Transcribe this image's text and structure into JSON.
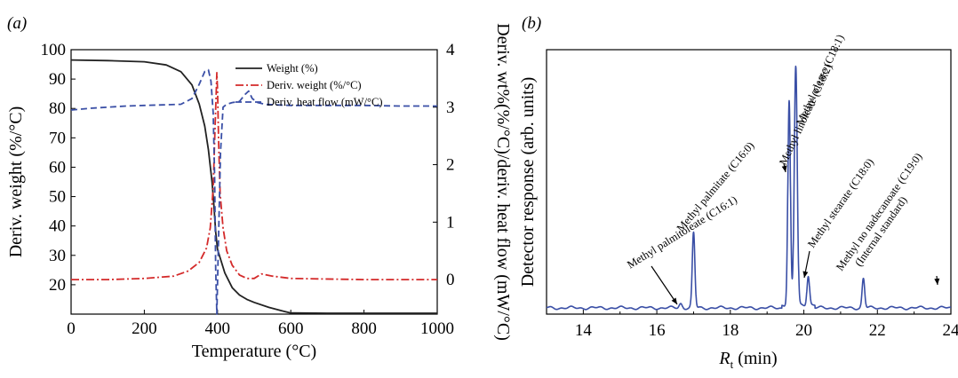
{
  "chart_data": [
    {
      "panel_label": "(a)",
      "type": "line",
      "xlabel": "Temperature (°C)",
      "ylabel_left": "Deriv. weight (%/°C)",
      "ylabel_right": "Deriv. wt%(%/°C)/deriv. heat flow (mW/°C)",
      "xlim": [
        0,
        1000
      ],
      "ylim_left": [
        10,
        100
      ],
      "ylim_right": [
        -0.6,
        4
      ],
      "x_ticks": [
        "0",
        "200",
        "400",
        "600",
        "800",
        "1000"
      ],
      "y_ticks_left": [
        "20",
        "30",
        "40",
        "50",
        "60",
        "70",
        "80",
        "90",
        "100"
      ],
      "y_ticks_right": [
        "0",
        "1",
        "2",
        "3",
        "4"
      ],
      "legend": "top-right",
      "series": [
        {
          "name": "Weight (%)",
          "axis": "left",
          "color": "#222222",
          "style": "solid",
          "x": [
            0,
            100,
            200,
            260,
            300,
            330,
            350,
            365,
            375,
            385,
            390,
            395,
            400,
            410,
            420,
            440,
            460,
            480,
            500,
            540,
            580,
            600,
            700,
            800,
            1000
          ],
          "y": [
            96.5,
            96.3,
            95.9,
            94.8,
            92.5,
            88,
            81.5,
            74,
            66,
            55,
            47,
            38,
            32,
            28,
            24,
            19,
            16.5,
            15,
            14,
            12.3,
            11,
            10.4,
            10.3,
            10.3,
            10.3
          ]
        },
        {
          "name": "Deriv. weight (%/°C)",
          "axis": "right",
          "color": "#d42a2a",
          "style": "dashdot",
          "x": [
            0,
            100,
            200,
            280,
            320,
            350,
            370,
            380,
            388,
            393,
            396,
            398,
            400,
            403,
            407,
            415,
            425,
            440,
            460,
            480,
            500,
            520,
            550,
            600,
            800,
            1000
          ],
          "y": [
            0,
            0,
            0.02,
            0.06,
            0.15,
            0.3,
            0.55,
            0.9,
            1.6,
            2.6,
            3.2,
            3.6,
            3.3,
            2.4,
            1.5,
            0.9,
            0.5,
            0.25,
            0.08,
            0.02,
            0.02,
            0.1,
            0.06,
            0.02,
            0,
            0
          ]
        },
        {
          "name": "Deriv. heat flow (mW/°C)",
          "axis": "right",
          "color": "#3a4fa6",
          "style": "dashed",
          "x": [
            0,
            50,
            100,
            150,
            200,
            250,
            300,
            330,
            350,
            365,
            375,
            382,
            388,
            392,
            395,
            398,
            402,
            408,
            415,
            425,
            440,
            460,
            475,
            485,
            495,
            510,
            530,
            560,
            600,
            700,
            800,
            900,
            1000
          ],
          "y": [
            2.95,
            2.98,
            3.0,
            3.02,
            3.03,
            3.04,
            3.05,
            3.15,
            3.4,
            3.62,
            3.65,
            3.45,
            2.9,
            1.8,
            0.2,
            -0.6,
            0.5,
            2.2,
            3.0,
            3.05,
            3.08,
            3.1,
            3.22,
            3.28,
            3.15,
            3.08,
            3.05,
            3.04,
            3.03,
            3.03,
            3.03,
            3.02,
            3.02
          ]
        }
      ]
    },
    {
      "panel_label": "(b)",
      "type": "line",
      "xlabel": "R",
      "xlabel_sub": "t",
      "xlabel_unit": " (min)",
      "ylabel": "Detector response (arb. units)",
      "xlim": [
        13,
        24
      ],
      "x_ticks": [
        "14",
        "16",
        "18",
        "20",
        "22",
        "24"
      ],
      "series": [
        {
          "name": "",
          "color": "#3a4fa6",
          "peaks": [
            {
              "rt": 16.65,
              "h": 0.018,
              "w": 0.04
            },
            {
              "rt": 17.0,
              "h": 0.305,
              "w": 0.035
            },
            {
              "rt": 19.6,
              "h": 0.83,
              "w": 0.035
            },
            {
              "rt": 19.78,
              "h": 0.97,
              "w": 0.04
            },
            {
              "rt": 20.12,
              "h": 0.12,
              "w": 0.035
            },
            {
              "rt": 21.62,
              "h": 0.12,
              "w": 0.035
            }
          ]
        }
      ],
      "annotations": [
        {
          "text": "Methyl palmitoleate (C16:1)",
          "rt": 16.65
        },
        {
          "text": "Methyl palmitate (C16:0)",
          "rt": 17.0
        },
        {
          "text": "Methyl linoleate (C18:2)",
          "rt": 19.6
        },
        {
          "text": "Methyl oleate (C18:1)",
          "rt": 19.78
        },
        {
          "text": "Methyl stearate (C18:0)",
          "rt": 20.12
        },
        {
          "text": "Methyl no nadecanoate (C19:0)",
          "rt": 21.62
        },
        {
          "text": "(Internal standard)",
          "rt": 21.62
        }
      ]
    }
  ]
}
